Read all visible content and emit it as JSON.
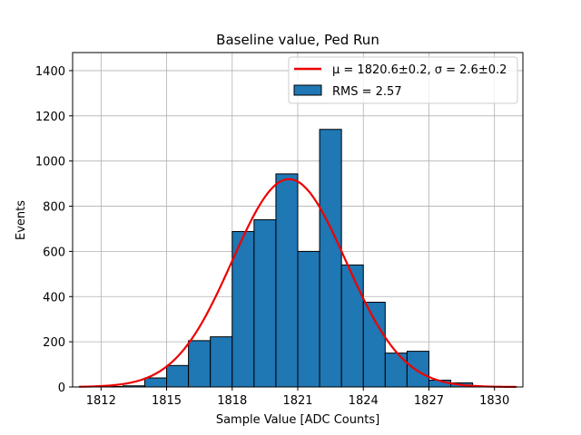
{
  "chart_data": {
    "type": "bar",
    "title": "Baseline value, Ped Run",
    "xlabel": "Sample Value [ADC Counts]",
    "ylabel": "Events",
    "xlim": [
      1810.7,
      1831.3
    ],
    "ylim": [
      0,
      1480
    ],
    "xticks": [
      1812,
      1815,
      1818,
      1821,
      1824,
      1827,
      1830
    ],
    "yticks": [
      0,
      200,
      400,
      600,
      800,
      1000,
      1200,
      1400
    ],
    "grid": true,
    "legend_position": "top-right",
    "histogram": {
      "name": "RMS = 2.57",
      "color": "#1f77b4",
      "edgecolor": "#000000",
      "bins": [
        {
          "x0": 1811.0,
          "x1": 1812.0,
          "count": 1
        },
        {
          "x0": 1812.0,
          "x1": 1813.0,
          "count": 2
        },
        {
          "x0": 1813.0,
          "x1": 1814.0,
          "count": 5
        },
        {
          "x0": 1814.0,
          "x1": 1815.0,
          "count": 40
        },
        {
          "x0": 1815.0,
          "x1": 1816.0,
          "count": 95
        },
        {
          "x0": 1816.0,
          "x1": 1817.0,
          "count": 205
        },
        {
          "x0": 1817.0,
          "x1": 1818.0,
          "count": 222
        },
        {
          "x0": 1818.0,
          "x1": 1819.0,
          "count": 688
        },
        {
          "x0": 1819.0,
          "x1": 1820.0,
          "count": 740
        },
        {
          "x0": 1820.0,
          "x1": 1821.0,
          "count": 943
        },
        {
          "x0": 1821.0,
          "x1": 1822.0,
          "count": 600
        },
        {
          "x0": 1822.0,
          "x1": 1823.0,
          "count": 1140
        },
        {
          "x0": 1823.0,
          "x1": 1824.0,
          "count": 540
        },
        {
          "x0": 1824.0,
          "x1": 1825.0,
          "count": 375
        },
        {
          "x0": 1825.0,
          "x1": 1826.0,
          "count": 150
        },
        {
          "x0": 1826.0,
          "x1": 1827.0,
          "count": 158
        },
        {
          "x0": 1827.0,
          "x1": 1828.0,
          "count": 30
        },
        {
          "x0": 1828.0,
          "x1": 1829.0,
          "count": 18
        },
        {
          "x0": 1829.0,
          "x1": 1830.0,
          "count": 2
        },
        {
          "x0": 1830.0,
          "x1": 1831.0,
          "count": 1
        }
      ]
    },
    "fit": {
      "name": "μ = 1820.6±0.2, σ = 2.6±0.2",
      "type": "gaussian",
      "color": "#ee0000",
      "mu": 1820.6,
      "sigma": 2.6,
      "amplitude": 920,
      "x_range": [
        1811.0,
        1831.0
      ]
    }
  }
}
